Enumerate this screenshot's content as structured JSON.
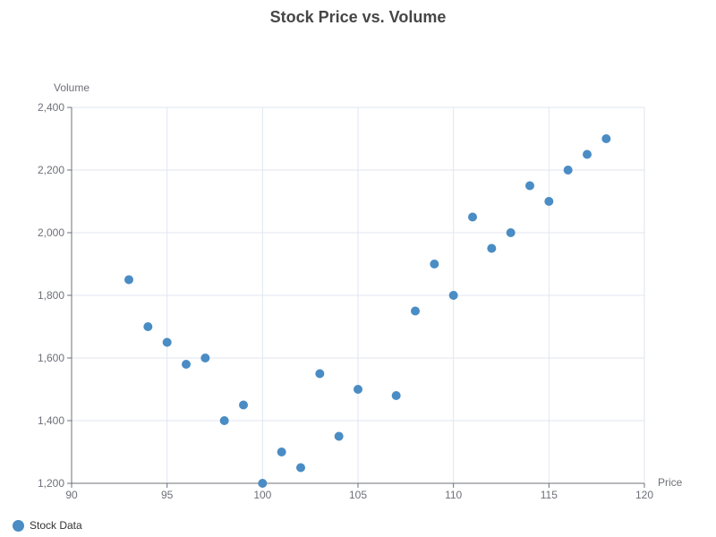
{
  "title": "Stock Price vs. Volume",
  "colors": {
    "series": "#4A8CC4",
    "grid": "#E0E6F1",
    "axis": "#6E7079"
  },
  "chart_data": {
    "type": "scatter",
    "title": "Stock Price vs. Volume",
    "xlabel": "Price",
    "ylabel": "Volume",
    "xlim": [
      90,
      120
    ],
    "ylim": [
      1200,
      2400
    ],
    "x_ticks": [
      "90",
      "95",
      "100",
      "105",
      "110",
      "115",
      "120"
    ],
    "y_ticks": [
      "1,200",
      "1,400",
      "1,600",
      "1,800",
      "2,000",
      "2,200",
      "2,400"
    ],
    "grid": true,
    "legend": "bottom-left",
    "series": [
      {
        "name": "Stock Data",
        "points": [
          [
            93,
            1850
          ],
          [
            94,
            1700
          ],
          [
            95,
            1650
          ],
          [
            96,
            1580
          ],
          [
            97,
            1600
          ],
          [
            98,
            1400
          ],
          [
            99,
            1450
          ],
          [
            100,
            1200
          ],
          [
            101,
            1300
          ],
          [
            102,
            1250
          ],
          [
            103,
            1550
          ],
          [
            104,
            1350
          ],
          [
            105,
            1500
          ],
          [
            107,
            1480
          ],
          [
            108,
            1750
          ],
          [
            109,
            1900
          ],
          [
            110,
            1800
          ],
          [
            111,
            2050
          ],
          [
            112,
            1950
          ],
          [
            113,
            2000
          ],
          [
            114,
            2150
          ],
          [
            115,
            2100
          ],
          [
            116,
            2200
          ],
          [
            117,
            2250
          ],
          [
            118,
            2300
          ]
        ]
      }
    ]
  }
}
